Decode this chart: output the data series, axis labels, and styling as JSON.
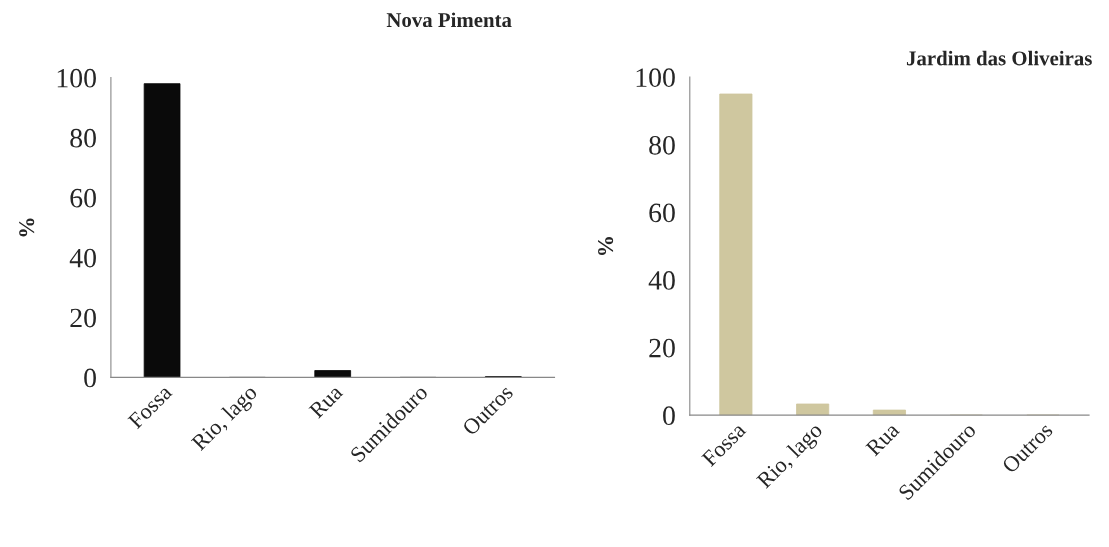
{
  "chart_data": [
    {
      "type": "bar",
      "title": "Nova Pimenta",
      "ylabel": "%",
      "categories": [
        "Fossa",
        "Rio, lago",
        "Rua",
        "Sumidouro",
        "Outros"
      ],
      "values": [
        98,
        0,
        2.3,
        0,
        0.3
      ],
      "color": "#0a0a0a",
      "ylim": [
        0,
        100
      ],
      "yticks": [
        0,
        20,
        40,
        60,
        80,
        100
      ],
      "grid": false
    },
    {
      "type": "bar",
      "title": "Jardim das Oliveiras",
      "ylabel": "%",
      "categories": [
        "Fossa",
        "Rio, lago",
        "Rua",
        "Sumidouro",
        "Outros"
      ],
      "values": [
        95,
        3.3,
        1.5,
        0,
        0
      ],
      "color": "#cfc79f",
      "ylim": [
        0,
        100
      ],
      "yticks": [
        0,
        20,
        40,
        60,
        80,
        100
      ],
      "grid": false
    }
  ]
}
